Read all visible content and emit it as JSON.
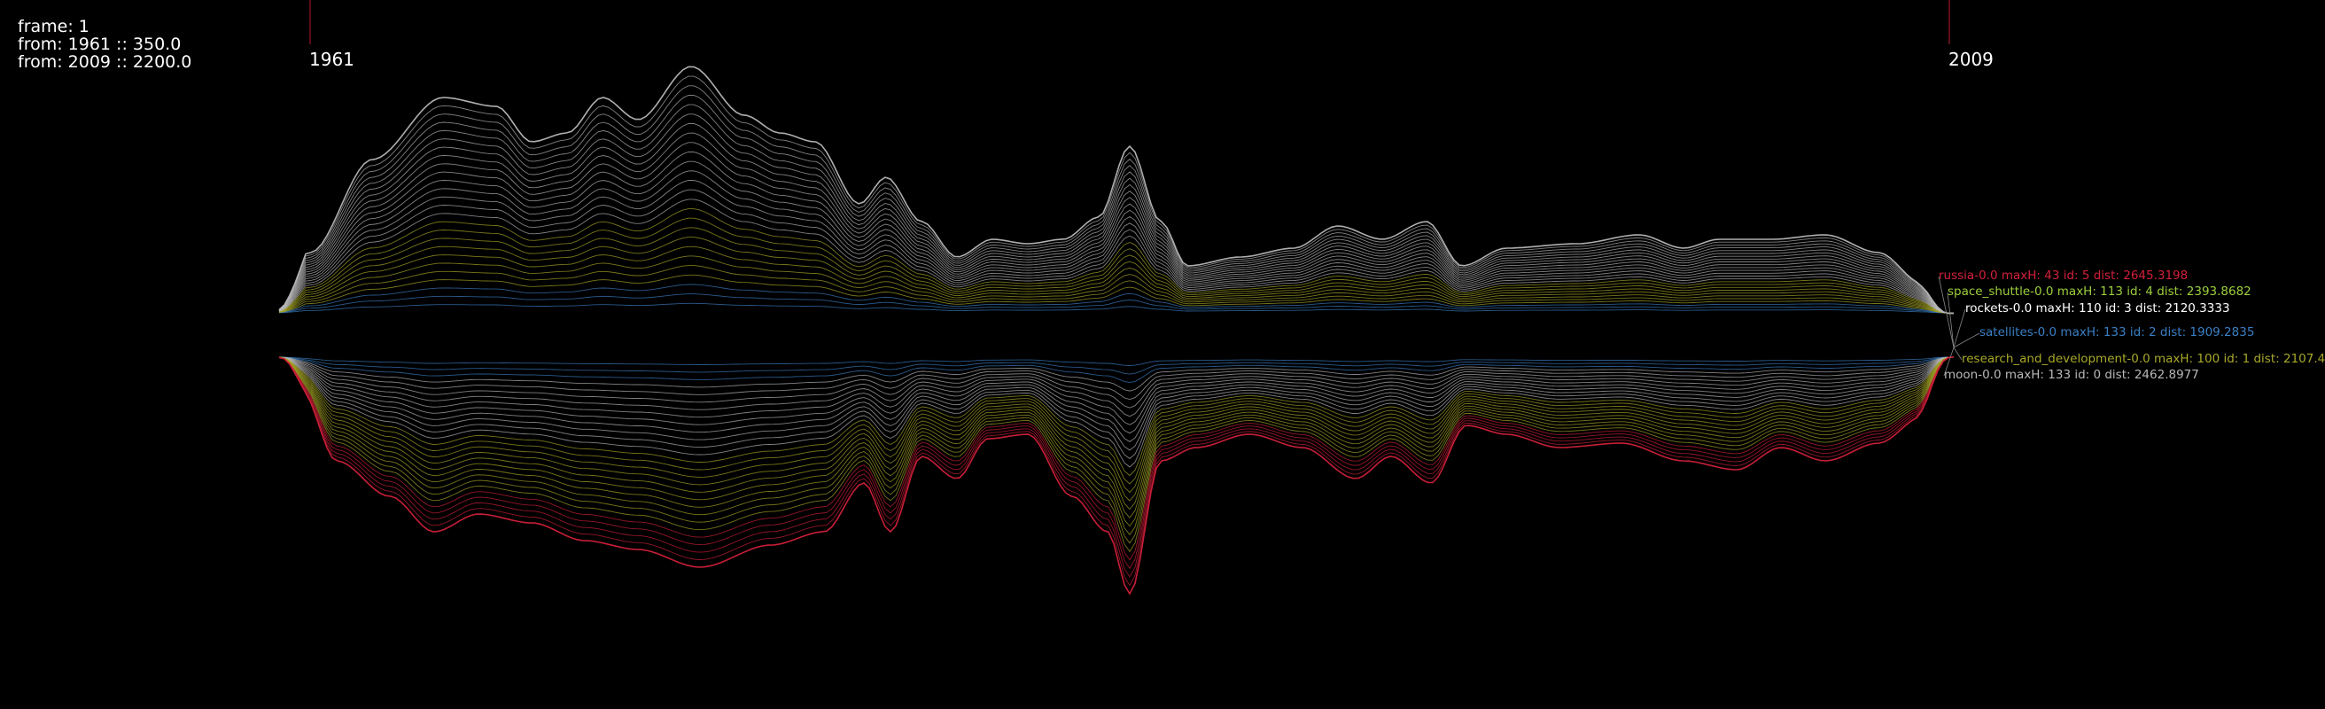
{
  "debug": {
    "frame": "frame: 1",
    "from_start": "from: 1961 :: 350.0",
    "from_end": "from: 2009 :: 2200.0"
  },
  "timeline": {
    "start_year": "1961",
    "end_year": "2009"
  },
  "colors": {
    "background": "#000000",
    "russia": "#d2203a",
    "space_shuttle": "#9ccf3c",
    "rockets": "#ffffff",
    "satellites": "#3a7fc4",
    "research_and_development": "#a8a828",
    "moon": "#b8b8b8"
  },
  "topics": [
    {
      "key": "russia",
      "label": "russia-0.0 maxH: 43 id: 5 dist: 2645.3198"
    },
    {
      "key": "space_shuttle",
      "label": "space_shuttle-0.0 maxH: 113 id: 4 dist: 2393.8682"
    },
    {
      "key": "rockets",
      "label": "rockets-0.0 maxH: 110 id: 3 dist: 2120.3333"
    },
    {
      "key": "satellites",
      "label": "satellites-0.0 maxH: 133 id: 2 dist: 1909.2835"
    },
    {
      "key": "research_and_development",
      "label": "research_and_development-0.0 maxH: 100 id: 1 dist: 2107.4"
    },
    {
      "key": "moon",
      "label": "moon-0.0 maxH: 133 id: 0 dist: 2462.8977"
    }
  ]
}
